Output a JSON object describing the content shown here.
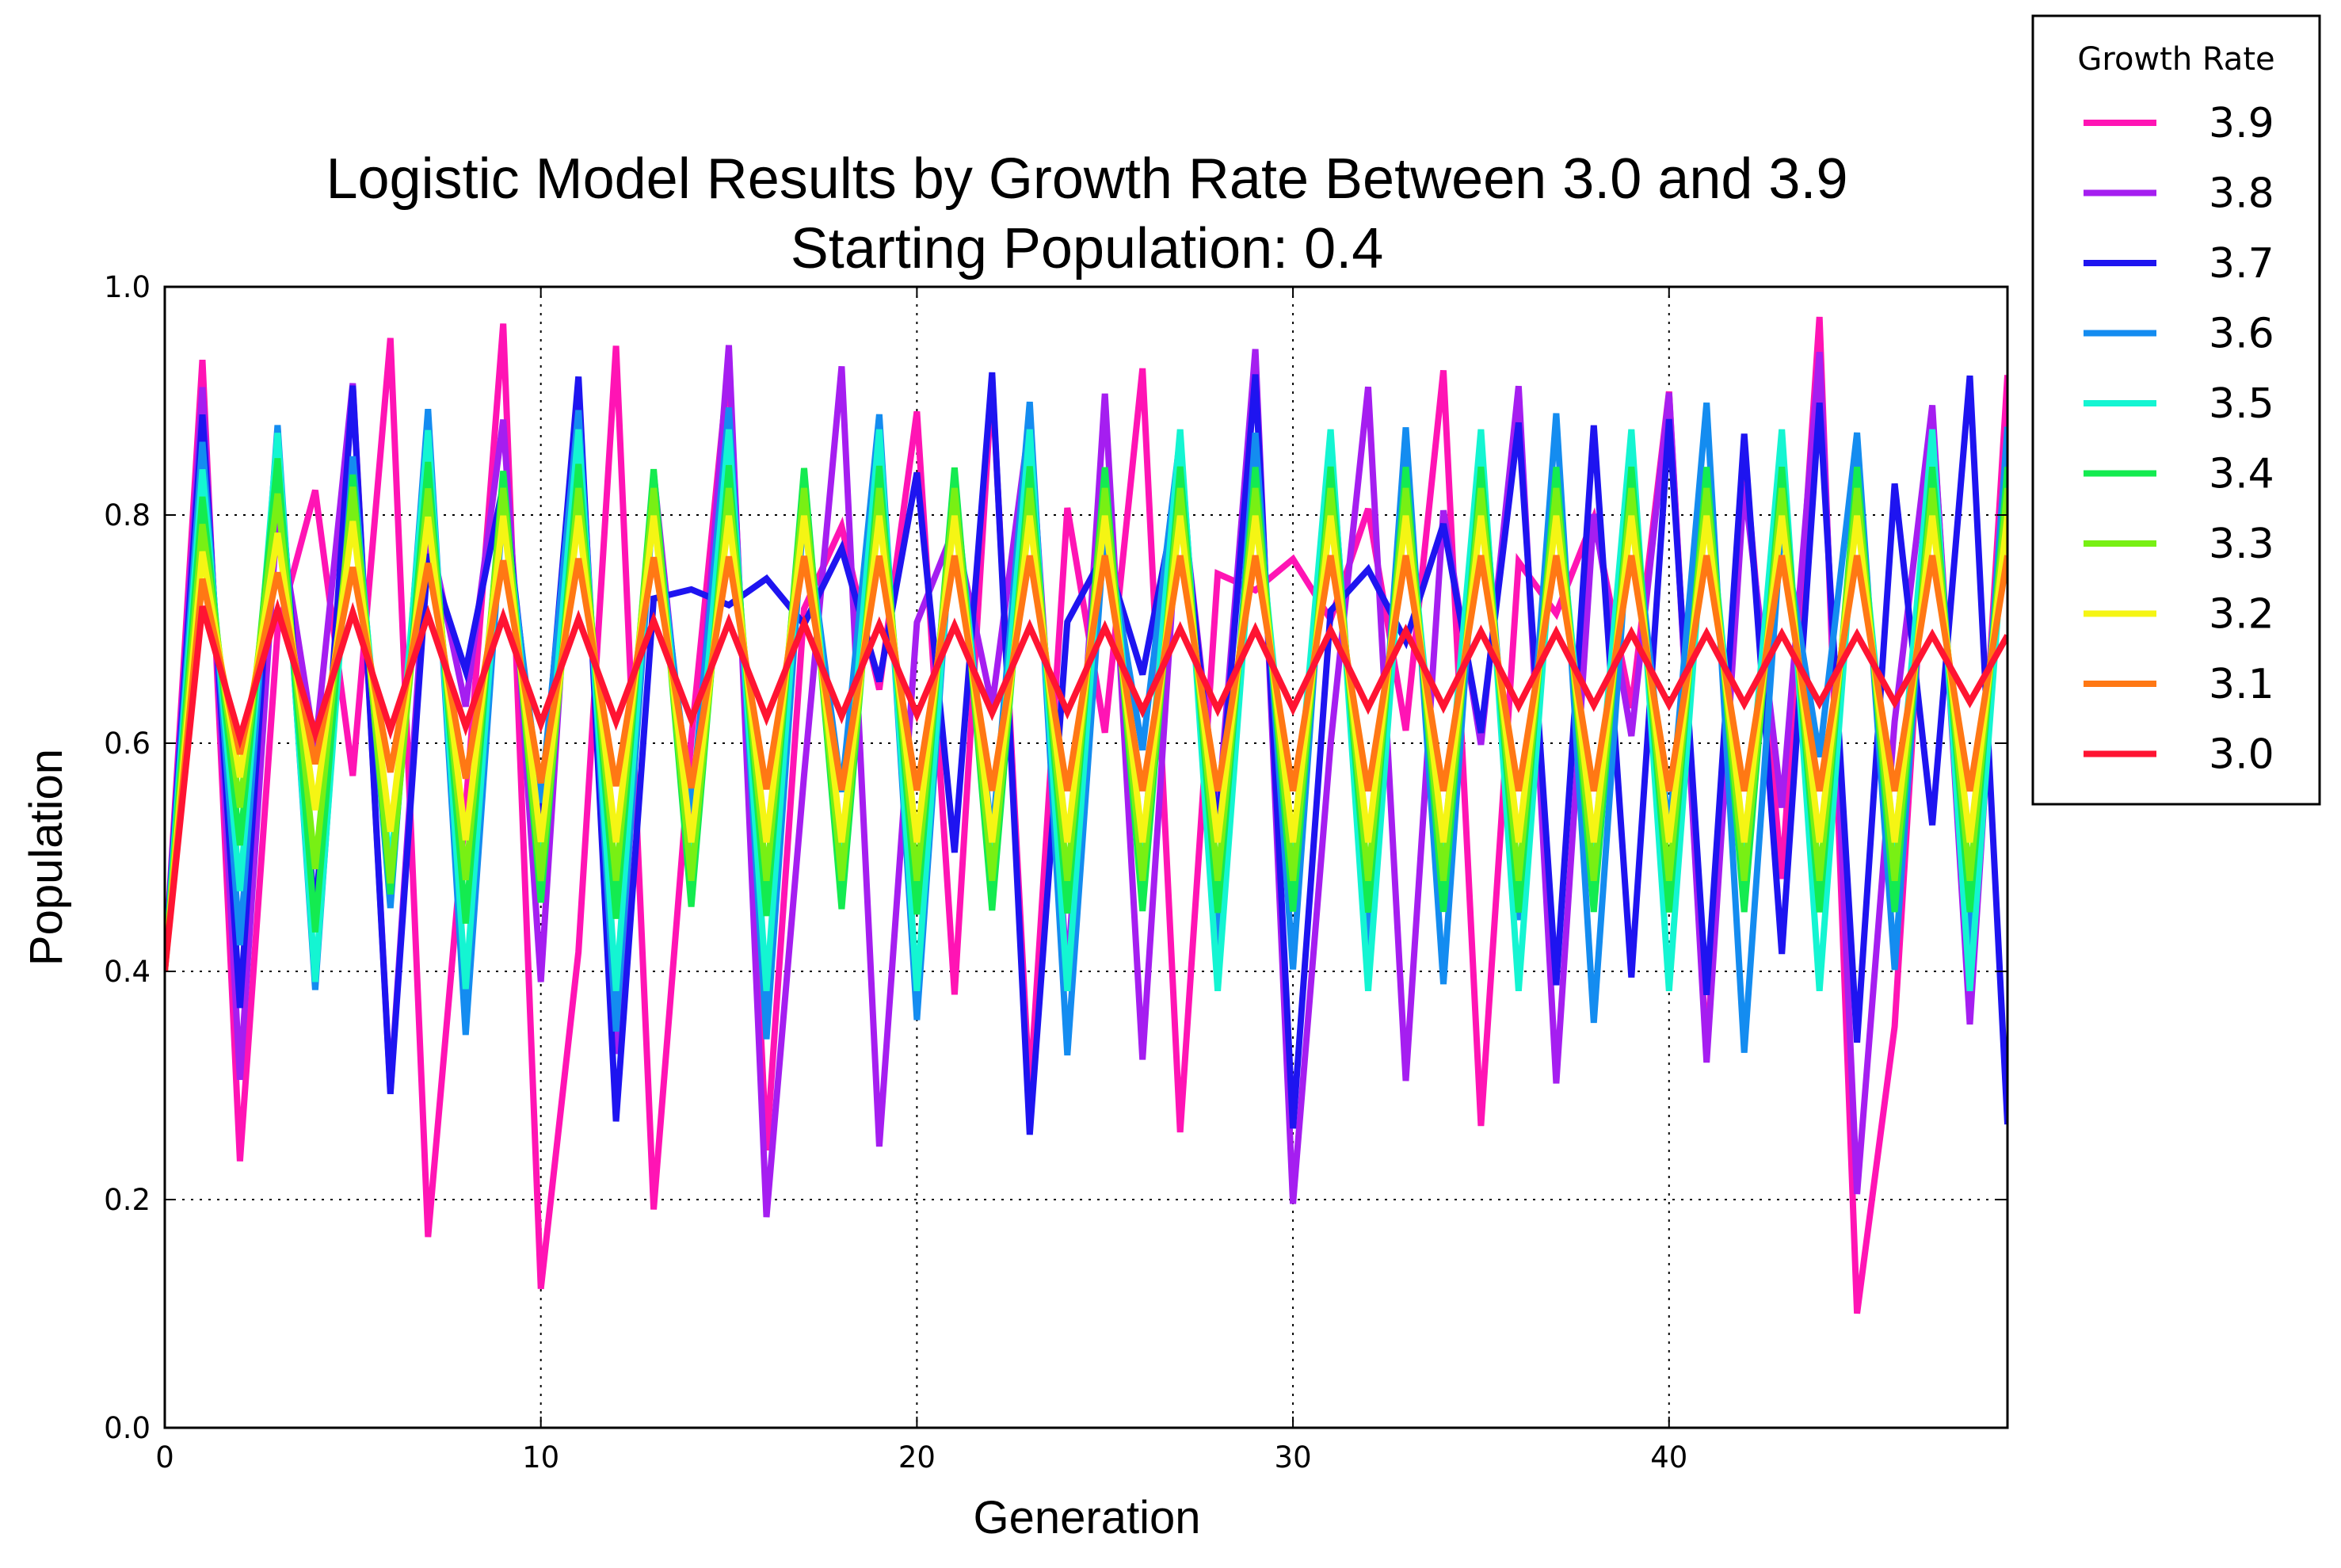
{
  "chart_data": {
    "type": "line",
    "title": "Logistic Model Results by Growth Rate Between 3.0 and 3.9",
    "subtitle": "Starting Population: 0.4",
    "xlabel": "Generation",
    "ylabel": "Population",
    "xlim": [
      0,
      49
    ],
    "ylim": [
      0.0,
      1.0
    ],
    "xticks": [
      0,
      10,
      20,
      30,
      40
    ],
    "yticks": [
      "0.0",
      "0.2",
      "0.4",
      "0.6",
      "0.8",
      "1.0"
    ],
    "grid": true,
    "starting_population": 0.4,
    "generations": 50,
    "legend": {
      "title": "Growth Rate",
      "placement": "outside-top-right"
    },
    "series": [
      {
        "name": "3.9",
        "rate": 3.9,
        "color": "#ff14b4"
      },
      {
        "name": "3.8",
        "rate": 3.8,
        "color": "#a51ef0"
      },
      {
        "name": "3.7",
        "rate": 3.7,
        "color": "#1e14f0"
      },
      {
        "name": "3.6",
        "rate": 3.6,
        "color": "#148cf0"
      },
      {
        "name": "3.5",
        "rate": 3.5,
        "color": "#14f5d2"
      },
      {
        "name": "3.4",
        "rate": 3.4,
        "color": "#14eb50"
      },
      {
        "name": "3.3",
        "rate": 3.3,
        "color": "#78f014"
      },
      {
        "name": "3.2",
        "rate": 3.2,
        "color": "#f5f514"
      },
      {
        "name": "3.1",
        "rate": 3.1,
        "color": "#ff7814"
      },
      {
        "name": "3.0",
        "rate": 3.0,
        "color": "#ff1432"
      }
    ]
  }
}
